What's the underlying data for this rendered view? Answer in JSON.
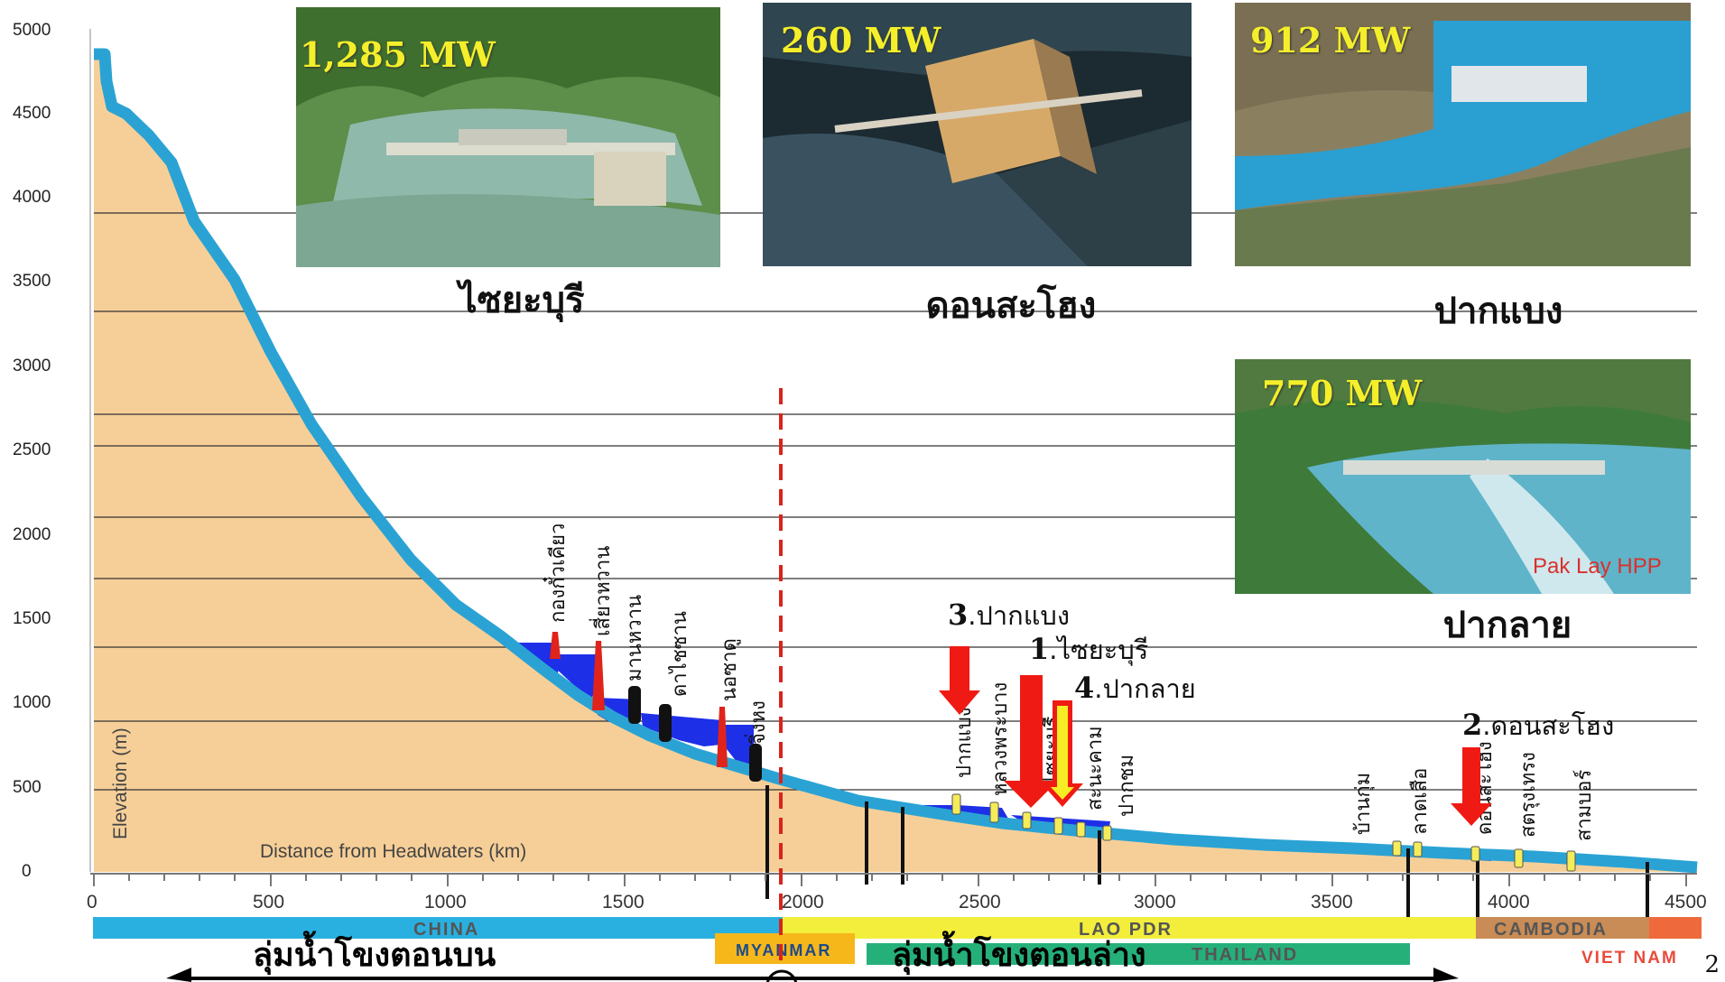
{
  "axis": {
    "y_title": "Elevation (m)",
    "x_title": "Distance from Headwaters (km)",
    "y_ticks": [
      "0",
      "500",
      "1000",
      "1500",
      "2000",
      "2500",
      "3000",
      "3500",
      "4000",
      "4500",
      "5000"
    ],
    "x_ticks": [
      "0",
      "500",
      "1000",
      "1500",
      "2000",
      "2500",
      "3000",
      "3500",
      "4000",
      "4500"
    ]
  },
  "upper_dams": [
    "กองกั๋วเคียว",
    "เสี่ยวหวาน",
    "มานหวาน",
    "ดาไชซาน",
    "นอซาดู",
    "จิ่งหง"
  ],
  "lower_dams": [
    "ปากแบง",
    "หลวงพระบาง",
    "ไซยะบุรี",
    "สะนะคาม",
    "ปากชม",
    "บ้านกุ่ม",
    "ลาดเสือ",
    "ดอนสะโฮง",
    "สตรุงเทรง",
    "สามบอร์"
  ],
  "callouts": [
    {
      "num": "3",
      "label": ".ปากแบง"
    },
    {
      "num": "1",
      "label": ".ไซยะบุรี"
    },
    {
      "num": "4",
      "label": ".ปากลาย"
    },
    {
      "num": "2",
      "label": ".ดอนสะโฮง"
    }
  ],
  "countries": {
    "china": "CHINA",
    "laos": "LAO PDR",
    "thailand": "THAILAND",
    "cambodia": "CAMBODIA",
    "myanmar": "MYANMAR",
    "vietnam": "VIET NAM"
  },
  "basins": {
    "upper": "ลุ่มน้ำโขงตอนบน",
    "lower": "ลุ่มน้ำโขงตอนล่าง"
  },
  "photos": [
    {
      "mw": "1,285 MW",
      "caption": "ไซยะบุรี"
    },
    {
      "mw": "260 MW",
      "caption": "ดอนสะโฮง"
    },
    {
      "mw": "912 MW",
      "caption": "ปากแบง"
    },
    {
      "mw": "770 MW",
      "caption": "ปากลาย",
      "tag": "Pak Lay HPP"
    }
  ],
  "page_number": "2",
  "colors": {
    "terrain": "#f6cf98",
    "river": "#2aa3d4",
    "reservoir": "#1e2fe8",
    "callout_arrow": "#f01a14",
    "dam_upper": "#e0231b",
    "dam_existing": "#111111",
    "dam_lower": "#f5ec5a"
  }
}
